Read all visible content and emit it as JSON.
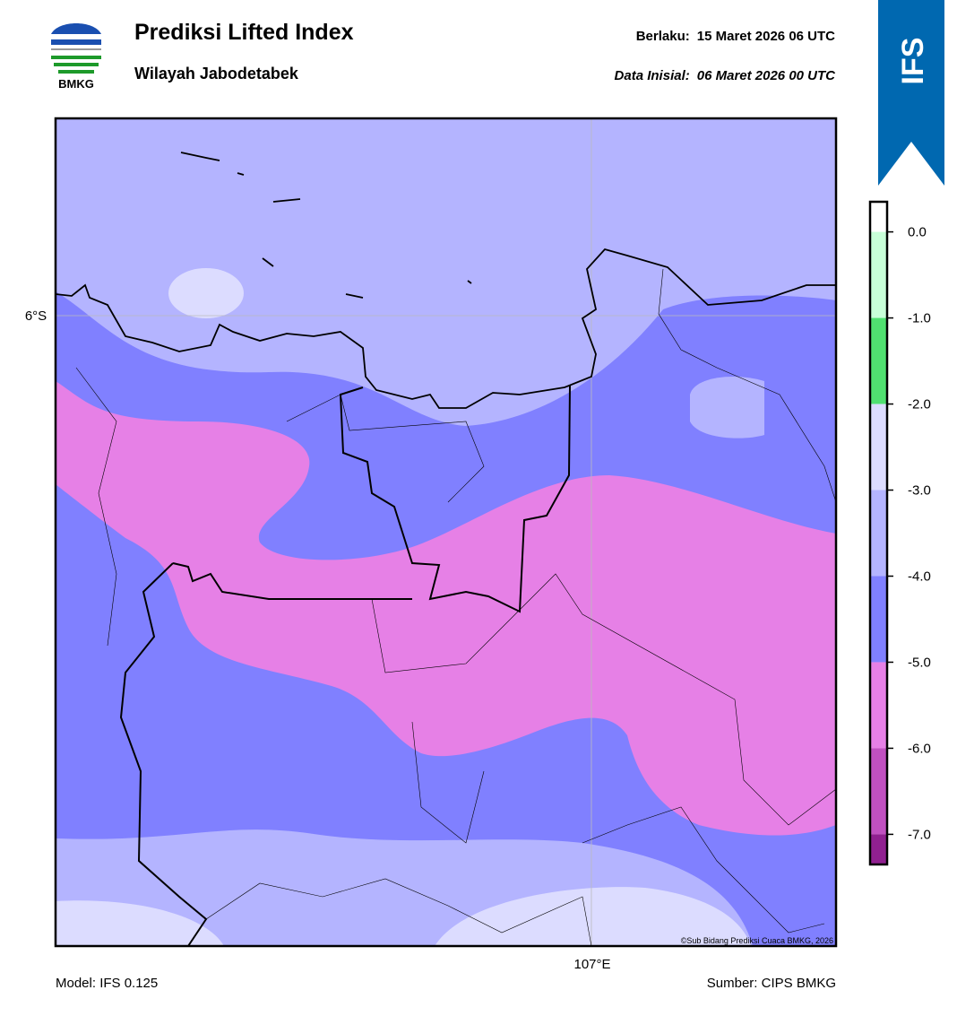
{
  "header": {
    "logo_text": "BMKG",
    "title": "Prediksi Lifted Index",
    "subtitle": "Wilayah Jabodetabek",
    "valid_label": "Berlaku:",
    "valid_time": "15 Maret 2026 06 UTC",
    "init_label": "Data Inisial:",
    "init_time": "06 Maret 2026 00 UTC",
    "badge": "IFS"
  },
  "map": {
    "lat_label": "6°S",
    "lon_label": "107°E",
    "copyright": "©Sub Bidang Prediksi Cuaca BMKG, 2026"
  },
  "colorbar": {
    "range": [
      -7.35,
      0.35
    ],
    "bounds": [
      0.35,
      0,
      -1,
      -2,
      -3,
      -4,
      -5,
      -6,
      -7,
      -7.35
    ],
    "colors": [
      "#ffffff",
      "#c8ffd8",
      "#50e070",
      "#dcdcff",
      "#b4b4ff",
      "#8080ff",
      "#e680e6",
      "#c050c0",
      "#902090"
    ],
    "ticks": [
      {
        "value": 0,
        "label": "0.0"
      },
      {
        "value": -1,
        "label": "-1.0"
      },
      {
        "value": -2,
        "label": "-2.0"
      },
      {
        "value": -3,
        "label": "-3.0"
      },
      {
        "value": -4,
        "label": "-4.0"
      },
      {
        "value": -5,
        "label": "-5.0"
      },
      {
        "value": -6,
        "label": "-6.0"
      },
      {
        "value": -7,
        "label": "-7.0"
      }
    ]
  },
  "footer": {
    "model": "Model: IFS 0.125",
    "source": "Sumber: CIPS BMKG"
  }
}
